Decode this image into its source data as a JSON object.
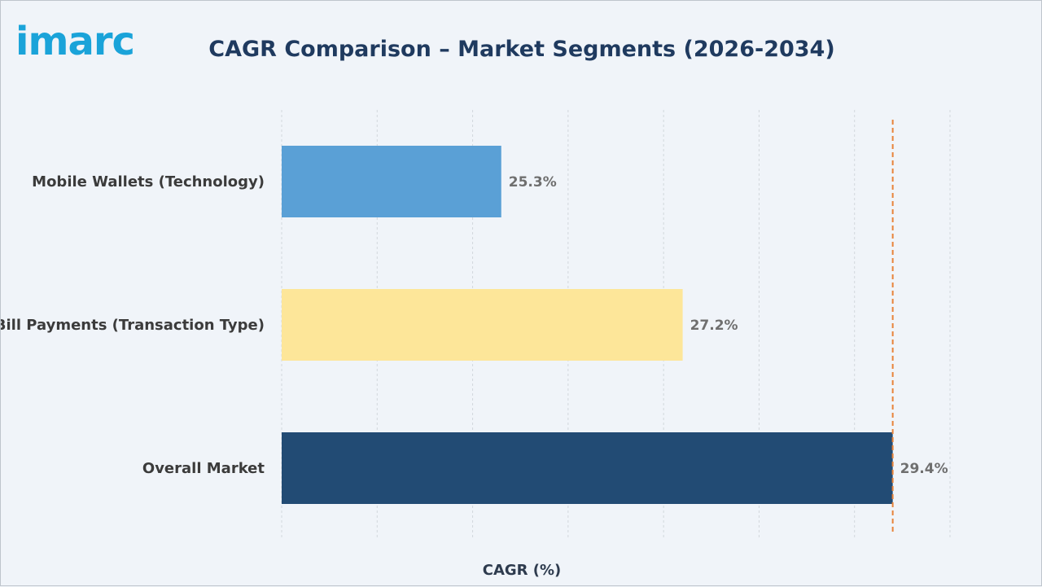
{
  "logo": {
    "text": "imarc"
  },
  "chart_data": {
    "type": "bar",
    "orientation": "horizontal",
    "title": "CAGR Comparison – Market Segments (2026-2034)",
    "xlabel": "CAGR (%)",
    "ylabel": "",
    "categories": [
      "Mobile Wallets (Technology)",
      "Bill Payments (Transaction Type)",
      "Overall Market"
    ],
    "values": [
      25.3,
      27.2,
      29.4
    ],
    "value_labels": [
      "25.3%",
      "27.2%",
      "29.4%"
    ],
    "xlim": [
      23.0,
      30.0
    ],
    "reference_line": {
      "value": 29.4,
      "style": "dashed",
      "color": "#e8833a"
    },
    "grid": "vertical dashed",
    "colors": [
      "#5aa0d6",
      "#fde699",
      "#224b74"
    ]
  }
}
